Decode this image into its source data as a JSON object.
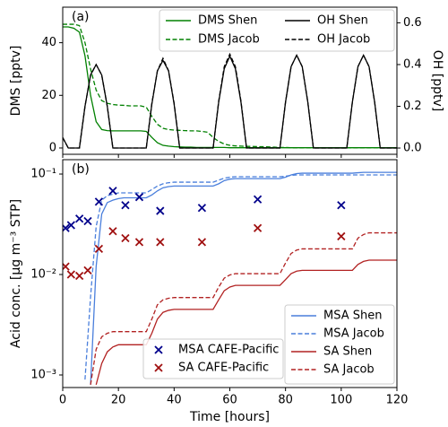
{
  "chart_data": [
    {
      "type": "line",
      "label": "(a)",
      "ylabel": "DMS [pptv]",
      "y2label": "OH [pptv]",
      "x": [
        0,
        2,
        4,
        6,
        8,
        10,
        12,
        14,
        16,
        18,
        20,
        22,
        24,
        26,
        28,
        30,
        32,
        34,
        36,
        38,
        40,
        42,
        44,
        46,
        48,
        50,
        52,
        54,
        56,
        58,
        60,
        62,
        64,
        66,
        68,
        70,
        72,
        74,
        76,
        78,
        80,
        82,
        84,
        86,
        88,
        90,
        92,
        94,
        96,
        98,
        100,
        102,
        104,
        106,
        108,
        110,
        112,
        114,
        116,
        118,
        120
      ],
      "xlim": [
        0,
        120
      ],
      "ylim": [
        -2.4,
        53.5
      ],
      "yticks": [
        0,
        20,
        40
      ],
      "y2lim": [
        -0.03,
        0.675
      ],
      "y2ticks": [
        {
          "value": 0,
          "label": "0.0"
        },
        0.2,
        0.4,
        0.6
      ],
      "legend": "upper right",
      "series": [
        {
          "name": "DMS Shen",
          "color": "#008000",
          "linestyle": "solid",
          "values": [
            46,
            46,
            45.5,
            44,
            35,
            20,
            10,
            7,
            6.6,
            6.5,
            6.5,
            6.5,
            6.5,
            6.5,
            6.5,
            6.3,
            4,
            2,
            1,
            0.7,
            0.5,
            0.4,
            0.3,
            0.3,
            0.2,
            0.2,
            0.2,
            0.2,
            0.2,
            0.2,
            0.1,
            0.1,
            0.1,
            0.1,
            0.1,
            0.1,
            0.1,
            0.1,
            0.1,
            0.1,
            0.1,
            0.1,
            0.1,
            0.1,
            0.1,
            0.1,
            0.1,
            0.1,
            0.1,
            0.1,
            0.1,
            0.1,
            0.1,
            0.1,
            0.1,
            0.1,
            0.1,
            0.1,
            0.1,
            0.1,
            0.1
          ]
        },
        {
          "name": "DMS Jacob",
          "color": "#008000",
          "linestyle": "dashed",
          "values": [
            47,
            47,
            47,
            46.5,
            40,
            30,
            22,
            18,
            17,
            16.5,
            16.3,
            16.2,
            16,
            16,
            16,
            15.5,
            12,
            9,
            7.5,
            7,
            6.8,
            6.7,
            6.6,
            6.5,
            6.5,
            6.3,
            6,
            4,
            2.5,
            1.5,
            1,
            0.8,
            0.7,
            0.6,
            0.6,
            0.5,
            0.5,
            0.4,
            0.3,
            0.2,
            0.2,
            0.1,
            0.1,
            0.1,
            0.1,
            0.1,
            0.1,
            0.1,
            0.1,
            0.1,
            0.1,
            0.1,
            0.1,
            0.1,
            0.1,
            0.1,
            0.1,
            0.1,
            0.1,
            0.1,
            0.1
          ]
        },
        {
          "name": "OH Shen",
          "color": "#000000",
          "linestyle": "solid",
          "axis": "y2",
          "values": [
            0.05,
            0,
            0,
            0,
            0.2,
            0.35,
            0.4,
            0.35,
            0.2,
            0,
            0,
            0,
            0,
            0,
            0,
            0,
            0.21,
            0.37,
            0.42,
            0.37,
            0.21,
            0,
            0,
            0,
            0,
            0,
            0,
            0,
            0.22,
            0.38,
            0.44,
            0.38,
            0.22,
            0,
            0,
            0,
            0,
            0,
            0,
            0,
            0.22,
            0.39,
            0.445,
            0.39,
            0.22,
            0,
            0,
            0,
            0,
            0,
            0,
            0,
            0.22,
            0.39,
            0.445,
            0.39,
            0.22,
            0,
            0,
            0,
            0
          ]
        },
        {
          "name": "OH Jacob",
          "color": "#000000",
          "linestyle": "dashed",
          "axis": "y2",
          "values": [
            0.05,
            0,
            0,
            0,
            0.2,
            0.35,
            0.4,
            0.35,
            0.2,
            0,
            0,
            0,
            0,
            0,
            0,
            0,
            0.215,
            0.37,
            0.43,
            0.37,
            0.215,
            0,
            0,
            0,
            0,
            0,
            0,
            0,
            0.225,
            0.39,
            0.45,
            0.39,
            0.225,
            0,
            0,
            0,
            0,
            0,
            0,
            0,
            0.22,
            0.39,
            0.445,
            0.39,
            0.22,
            0,
            0,
            0,
            0,
            0,
            0,
            0,
            0.22,
            0.39,
            0.445,
            0.39,
            0.22,
            0,
            0,
            0,
            0
          ]
        }
      ]
    },
    {
      "type": "line",
      "label": "(b)",
      "xlabel": "Time [hours]",
      "ylabel": "Acid conc. [μg m⁻³ STP]",
      "x": [
        0,
        2,
        4,
        6,
        8,
        10,
        12,
        14,
        16,
        18,
        20,
        22,
        24,
        26,
        28,
        30,
        32,
        34,
        36,
        38,
        40,
        42,
        44,
        46,
        48,
        50,
        52,
        54,
        56,
        58,
        60,
        62,
        64,
        66,
        68,
        70,
        72,
        74,
        76,
        78,
        80,
        82,
        84,
        86,
        88,
        90,
        92,
        94,
        96,
        98,
        100,
        102,
        104,
        106,
        108,
        110,
        112,
        114,
        116,
        118,
        120
      ],
      "xlim": [
        0,
        120
      ],
      "xticks": [
        0,
        20,
        40,
        60,
        80,
        100,
        120
      ],
      "yscale": "log",
      "ylim": [
        0.00075,
        0.139
      ],
      "yticks": [
        {
          "value": 0.001,
          "label": "10⁻³"
        },
        {
          "value": 0.01,
          "label": "10⁻²"
        },
        {
          "value": 0.1,
          "label": "10⁻¹"
        }
      ],
      "legend": "lower right",
      "scatter_legend": "lower center",
      "series": [
        {
          "name": "MSA Shen",
          "color": "#4a7fdc",
          "linestyle": "solid",
          "values": [
            null,
            null,
            null,
            null,
            null,
            0.0008,
            0.012,
            0.04,
            0.052,
            0.055,
            0.057,
            0.058,
            0.058,
            0.058,
            0.058,
            0.058,
            0.062,
            0.068,
            0.073,
            0.075,
            0.076,
            0.076,
            0.076,
            0.076,
            0.076,
            0.076,
            0.076,
            0.076,
            0.08,
            0.086,
            0.089,
            0.09,
            0.09,
            0.09,
            0.09,
            0.09,
            0.09,
            0.09,
            0.09,
            0.09,
            0.093,
            0.098,
            0.101,
            0.102,
            0.102,
            0.102,
            0.102,
            0.102,
            0.102,
            0.102,
            0.102,
            0.102,
            0.102,
            0.103,
            0.104,
            0.104,
            0.104,
            0.104,
            0.104,
            0.104,
            0.104
          ]
        },
        {
          "name": "MSA Jacob",
          "color": "#4a7fdc",
          "linestyle": "dashed",
          "values": [
            null,
            null,
            null,
            null,
            0.0009,
            0.006,
            0.03,
            0.055,
            0.061,
            0.063,
            0.065,
            0.065,
            0.065,
            0.065,
            0.065,
            0.065,
            0.07,
            0.076,
            0.08,
            0.082,
            0.083,
            0.083,
            0.083,
            0.083,
            0.083,
            0.083,
            0.083,
            0.083,
            0.087,
            0.091,
            0.093,
            0.094,
            0.094,
            0.094,
            0.094,
            0.094,
            0.094,
            0.094,
            0.094,
            0.094,
            0.095,
            0.097,
            0.098,
            0.098,
            0.098,
            0.098,
            0.098,
            0.098,
            0.098,
            0.098,
            0.098,
            0.098,
            0.098,
            0.098,
            0.098,
            0.098,
            0.098,
            0.098,
            0.098,
            0.098,
            0.098
          ]
        },
        {
          "name": "SA Shen",
          "color": "#b22222",
          "linestyle": "solid",
          "values": [
            null,
            null,
            null,
            null,
            null,
            null,
            0.0008,
            0.0013,
            0.0017,
            0.0019,
            0.002,
            0.002,
            0.002,
            0.002,
            0.002,
            0.002,
            0.0026,
            0.0036,
            0.0042,
            0.0044,
            0.0045,
            0.0045,
            0.0045,
            0.0045,
            0.0045,
            0.0045,
            0.0045,
            0.0045,
            0.0056,
            0.0069,
            0.0075,
            0.0078,
            0.0078,
            0.0078,
            0.0078,
            0.0078,
            0.0078,
            0.0078,
            0.0078,
            0.0078,
            0.0089,
            0.0102,
            0.0108,
            0.011,
            0.011,
            0.011,
            0.011,
            0.011,
            0.011,
            0.011,
            0.011,
            0.011,
            0.011,
            0.0126,
            0.0135,
            0.0139,
            0.0139,
            0.0139,
            0.0139,
            0.0139,
            0.0139
          ]
        },
        {
          "name": "SA Jacob",
          "color": "#b22222",
          "linestyle": "dashed",
          "values": [
            null,
            null,
            null,
            null,
            null,
            0.0008,
            0.0018,
            0.0024,
            0.0026,
            0.0027,
            0.0027,
            0.0027,
            0.0027,
            0.0027,
            0.0027,
            0.0027,
            0.0036,
            0.005,
            0.0056,
            0.0058,
            0.0059,
            0.0059,
            0.0059,
            0.0059,
            0.0059,
            0.0059,
            0.0059,
            0.0059,
            0.0075,
            0.0092,
            0.0099,
            0.0102,
            0.0102,
            0.0102,
            0.0102,
            0.0102,
            0.0102,
            0.0102,
            0.0102,
            0.0102,
            0.013,
            0.0162,
            0.0175,
            0.018,
            0.018,
            0.018,
            0.018,
            0.018,
            0.018,
            0.018,
            0.018,
            0.018,
            0.018,
            0.023,
            0.025,
            0.026,
            0.026,
            0.026,
            0.026,
            0.026,
            0.026
          ]
        },
        {
          "name": "MSA CAFE-Pacific",
          "type": "scatter",
          "marker": "x",
          "color": "#00008b",
          "x": [
            1,
            3,
            6,
            9,
            13,
            18,
            22.5,
            27.5,
            35,
            50,
            70,
            100
          ],
          "values": [
            0.029,
            0.031,
            0.036,
            0.034,
            0.053,
            0.068,
            0.049,
            0.059,
            0.043,
            0.046,
            0.056,
            0.049
          ]
        },
        {
          "name": "SA CAFE-Pacific",
          "type": "scatter",
          "marker": "x",
          "color": "#a01010",
          "x": [
            1,
            3,
            6,
            9,
            13,
            18,
            22.5,
            27.5,
            35,
            50,
            70,
            100
          ],
          "values": [
            0.012,
            0.01,
            0.0097,
            0.011,
            0.018,
            0.027,
            0.023,
            0.021,
            0.021,
            0.021,
            0.029,
            0.024
          ]
        }
      ]
    }
  ]
}
